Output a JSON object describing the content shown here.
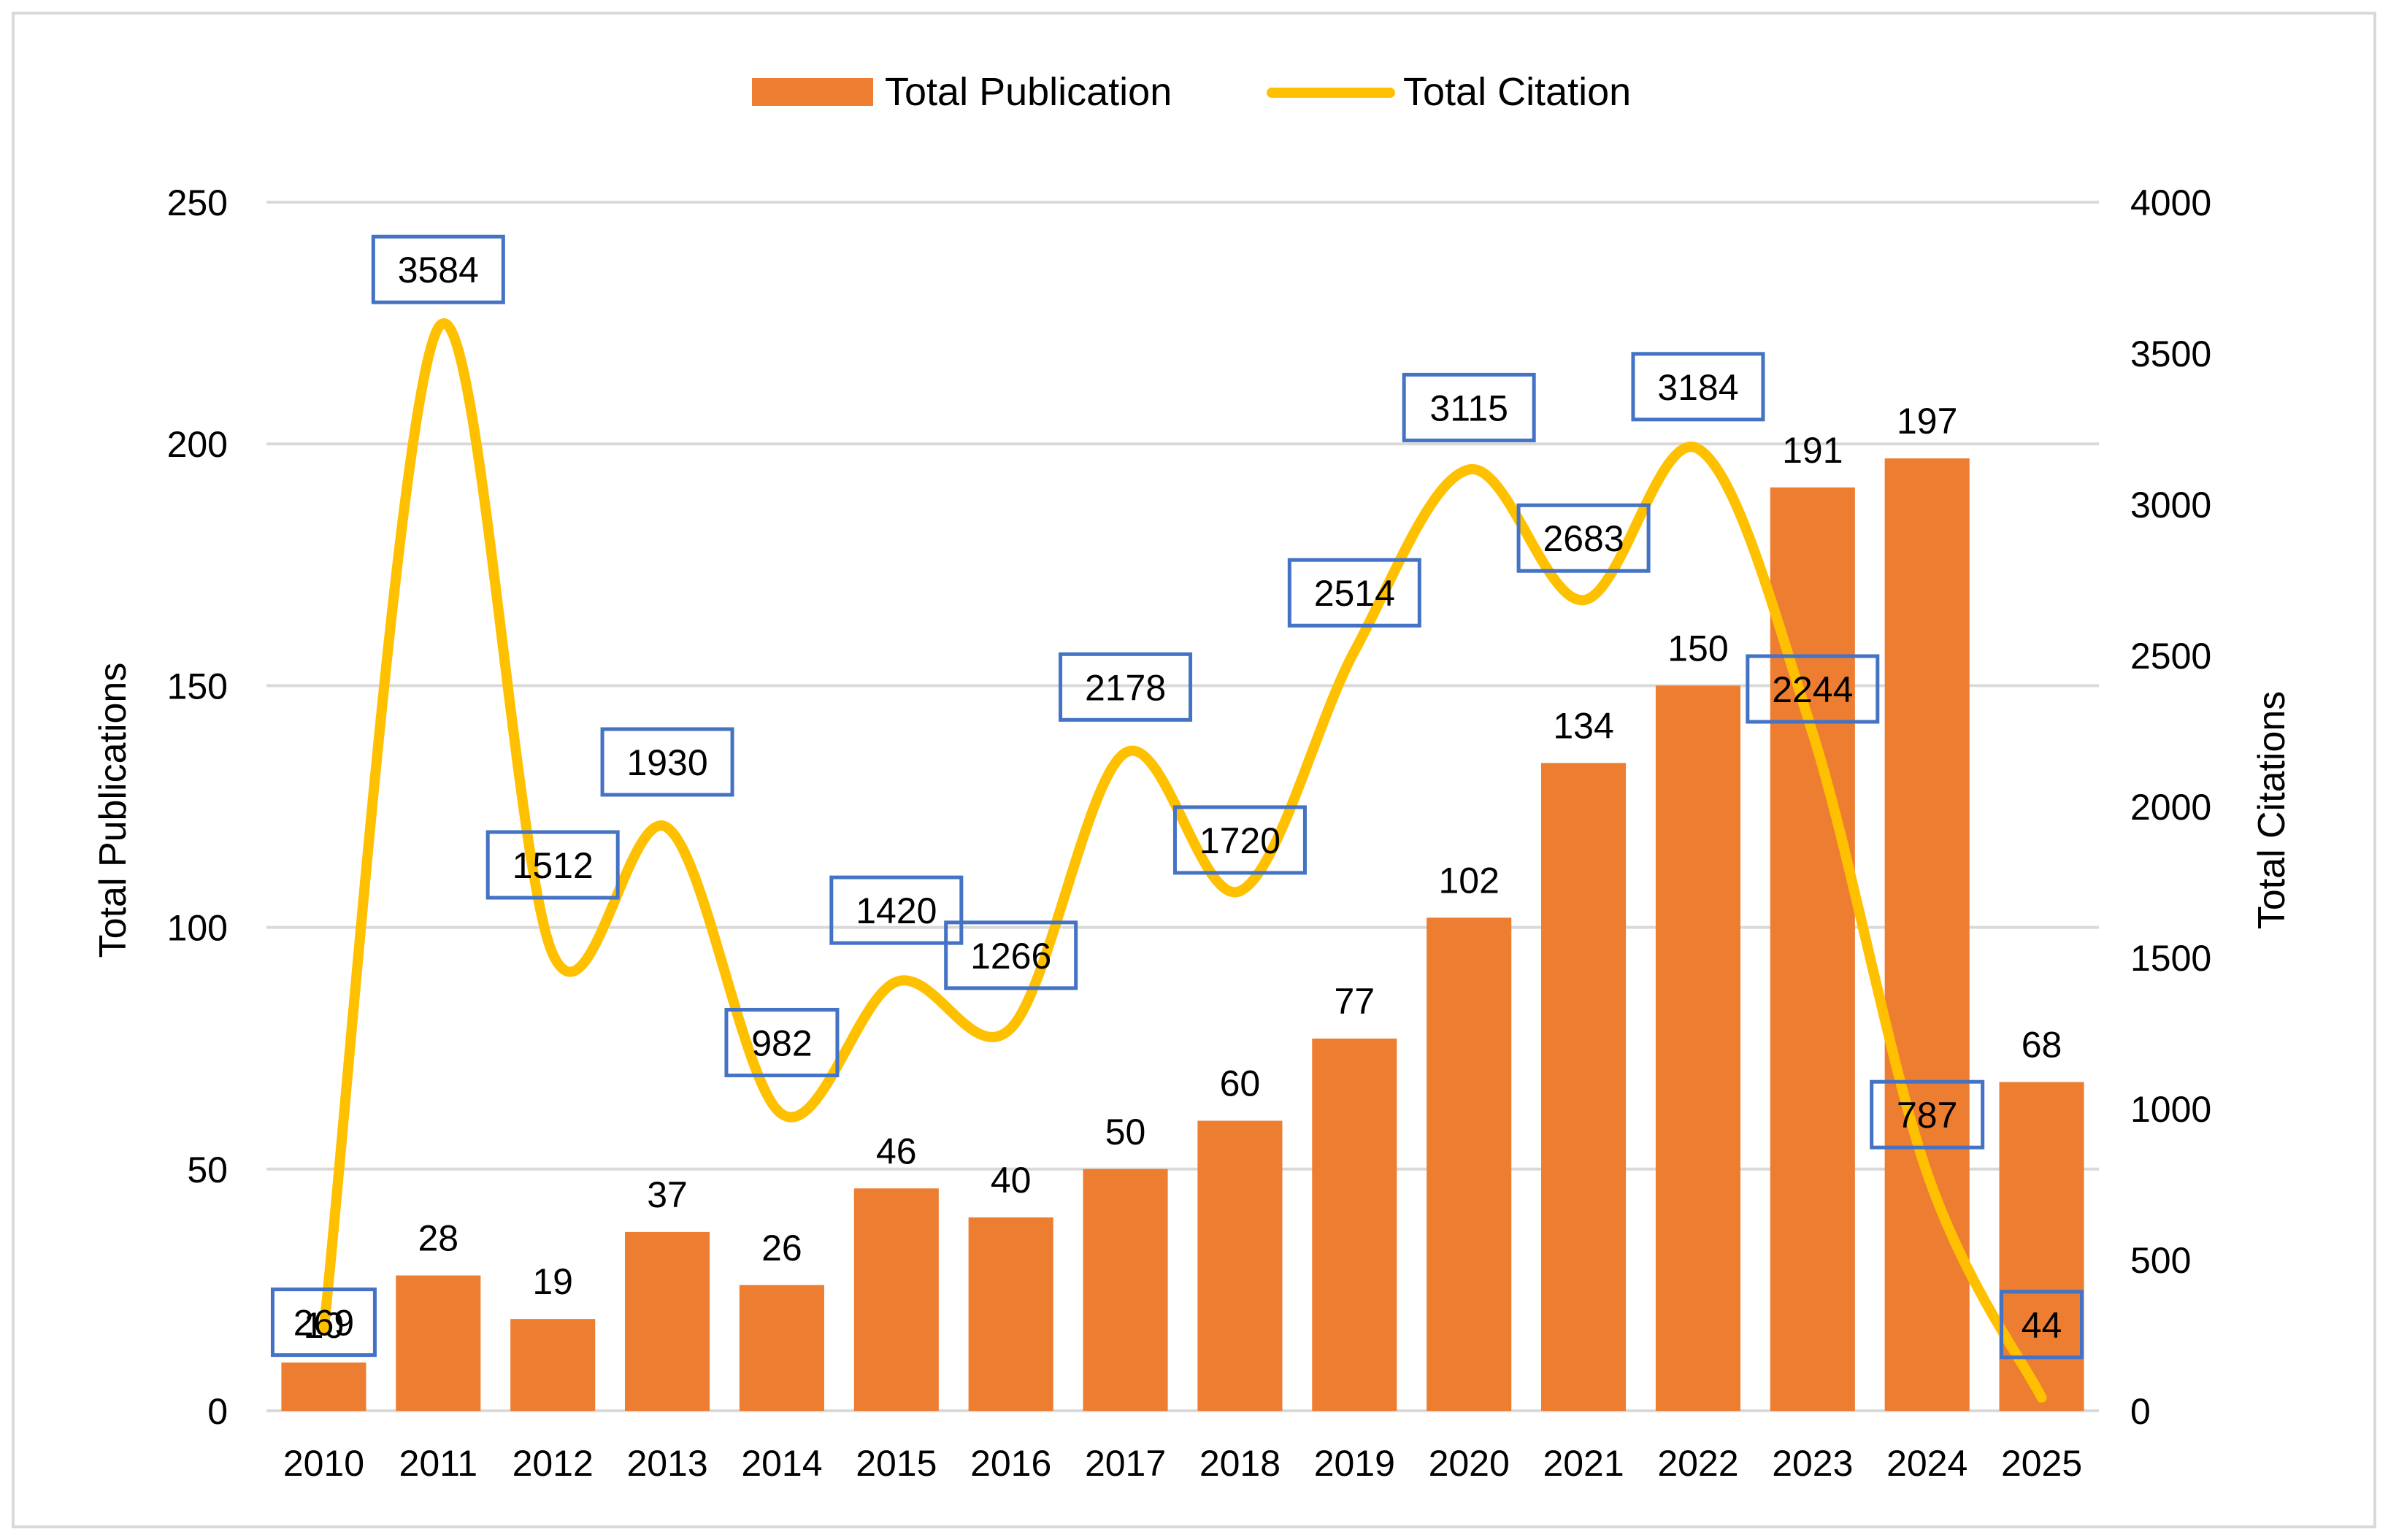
{
  "chart_data": {
    "type": "bar",
    "categories": [
      "2010",
      "2011",
      "2012",
      "2013",
      "2014",
      "2015",
      "2016",
      "2017",
      "2018",
      "2019",
      "2020",
      "2021",
      "2022",
      "2023",
      "2024",
      "2025"
    ],
    "series": [
      {
        "name": "Total Publication",
        "type": "bar",
        "axis": "left",
        "color": "#ED7D31",
        "values": [
          10,
          28,
          19,
          37,
          26,
          46,
          40,
          50,
          60,
          77,
          102,
          134,
          150,
          191,
          197,
          68
        ]
      },
      {
        "name": "Total Citation",
        "type": "line",
        "axis": "right",
        "color": "#FFC000",
        "values": [
          269,
          3584,
          1512,
          1930,
          982,
          1420,
          1266,
          2178,
          1720,
          2514,
          3115,
          2683,
          3184,
          2244,
          787,
          44
        ]
      }
    ],
    "ylabel": "Total Publications",
    "y2label": "Total Citations",
    "ylim": [
      0,
      250
    ],
    "y2lim": [
      0,
      4000
    ],
    "yticks": [
      0,
      50,
      100,
      150,
      200,
      250
    ],
    "y2ticks": [
      0,
      500,
      1000,
      1500,
      2000,
      2500,
      3000,
      3500,
      4000
    ],
    "grid": true,
    "legend_position": "top-center",
    "citation_label_box_color": "#4472C4"
  }
}
